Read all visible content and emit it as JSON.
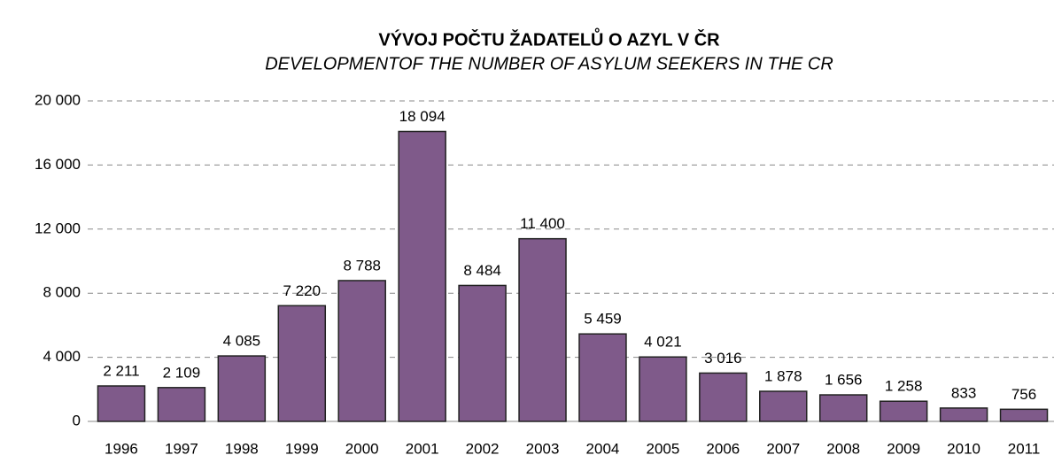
{
  "chart_data": {
    "type": "bar",
    "title": "VÝVOJ POČTU ŽADATELŮ O AZYL V ČR",
    "subtitle": "DEVELOPMENTOF THE NUMBER OF ASYLUM SEEKERS IN THE CR",
    "categories": [
      "1996",
      "1997",
      "1998",
      "1999",
      "2000",
      "2001",
      "2002",
      "2003",
      "2004",
      "2005",
      "2006",
      "2007",
      "2008",
      "2009",
      "2010",
      "2011"
    ],
    "values": [
      2211,
      2109,
      4085,
      7220,
      8788,
      18094,
      8484,
      11400,
      5459,
      4021,
      3016,
      1878,
      1656,
      1258,
      833,
      756
    ],
    "value_labels": [
      "2 211",
      "2 109",
      "4 085",
      "7 220",
      "8 788",
      "18 094",
      "8 484",
      "11 400",
      "5 459",
      "4 021",
      "3 016",
      "1 878",
      "1 656",
      "1 258",
      "833",
      "756"
    ],
    "color": "#7f5a8a",
    "ylim": [
      0,
      20000
    ],
    "yticks": [
      0,
      {
        "value": 4000,
        "label": "4 000"
      },
      {
        "value": 8000,
        "label": "8 000"
      },
      {
        "value": 12000,
        "label": "12 000"
      },
      {
        "value": 16000,
        "label": "16 000"
      },
      {
        "value": 20000,
        "label": "20 000"
      }
    ],
    "grid": true
  }
}
